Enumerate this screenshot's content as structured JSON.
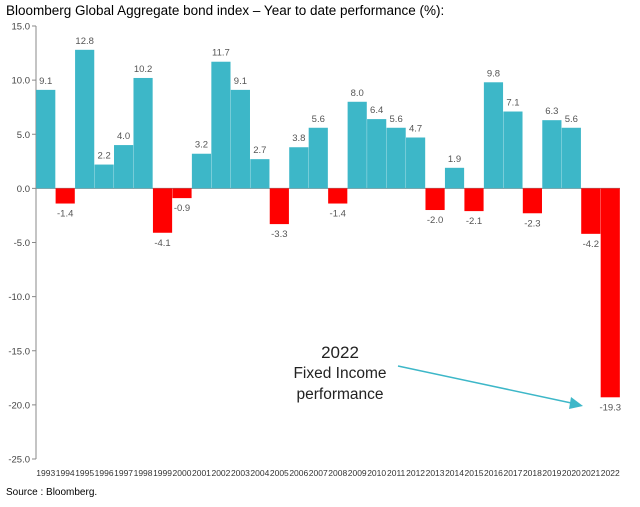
{
  "title": "Bloomberg Global Aggregate bond index – Year to date performance (%):",
  "source": "Source : Bloomberg.",
  "annotation": {
    "line1": "2022",
    "line2": "Fixed Income",
    "line3": "performance"
  },
  "colors": {
    "positive": "#3DB7C8",
    "negative": "#FF0000",
    "axis": "#888888",
    "arrow": "#3DB7C8"
  },
  "chart_data": {
    "type": "bar",
    "categories": [
      "1993",
      "1994",
      "1995",
      "1996",
      "1997",
      "1998",
      "1999",
      "2000",
      "2001",
      "2002",
      "2003",
      "2004",
      "2005",
      "2006",
      "2007",
      "2008",
      "2009",
      "2010",
      "2011",
      "2012",
      "2013",
      "2014",
      "2015",
      "2016",
      "2017",
      "2018",
      "2019",
      "2020",
      "2021",
      "2022"
    ],
    "values": [
      9.1,
      -1.4,
      12.8,
      2.2,
      4.0,
      10.2,
      -4.1,
      -0.9,
      3.2,
      11.7,
      9.1,
      2.7,
      -3.3,
      3.8,
      5.6,
      -1.4,
      8.0,
      6.4,
      5.6,
      4.7,
      -2.0,
      1.9,
      -2.1,
      9.8,
      7.1,
      -2.3,
      6.3,
      5.6,
      -4.2,
      -19.3
    ],
    "value_labels": [
      "9.1",
      "-1.4",
      "12.8",
      "2.2",
      "4.0",
      "10.2",
      "-4.1",
      "-0.9",
      "3.2",
      "11.7",
      "9.1",
      "2.7",
      "-3.3",
      "3.8",
      "5.6",
      "-1.4",
      "8.0",
      "6.4",
      "5.6",
      "4.7",
      "-2.0",
      "1.9",
      "-2.1",
      "9.8",
      "7.1",
      "-2.3",
      "6.3",
      "5.6",
      "-4.2",
      "-19.3"
    ],
    "ylim": [
      -25,
      15
    ],
    "yticks": [
      "15.0",
      "10.0",
      "5.0",
      "0.0",
      "-5.0",
      "-10.0",
      "-15.0",
      "-20.0",
      "-25.0"
    ],
    "ytick_values": [
      15,
      10,
      5,
      0,
      -5,
      -10,
      -15,
      -20,
      -25
    ],
    "grid": false,
    "legend": "none"
  }
}
